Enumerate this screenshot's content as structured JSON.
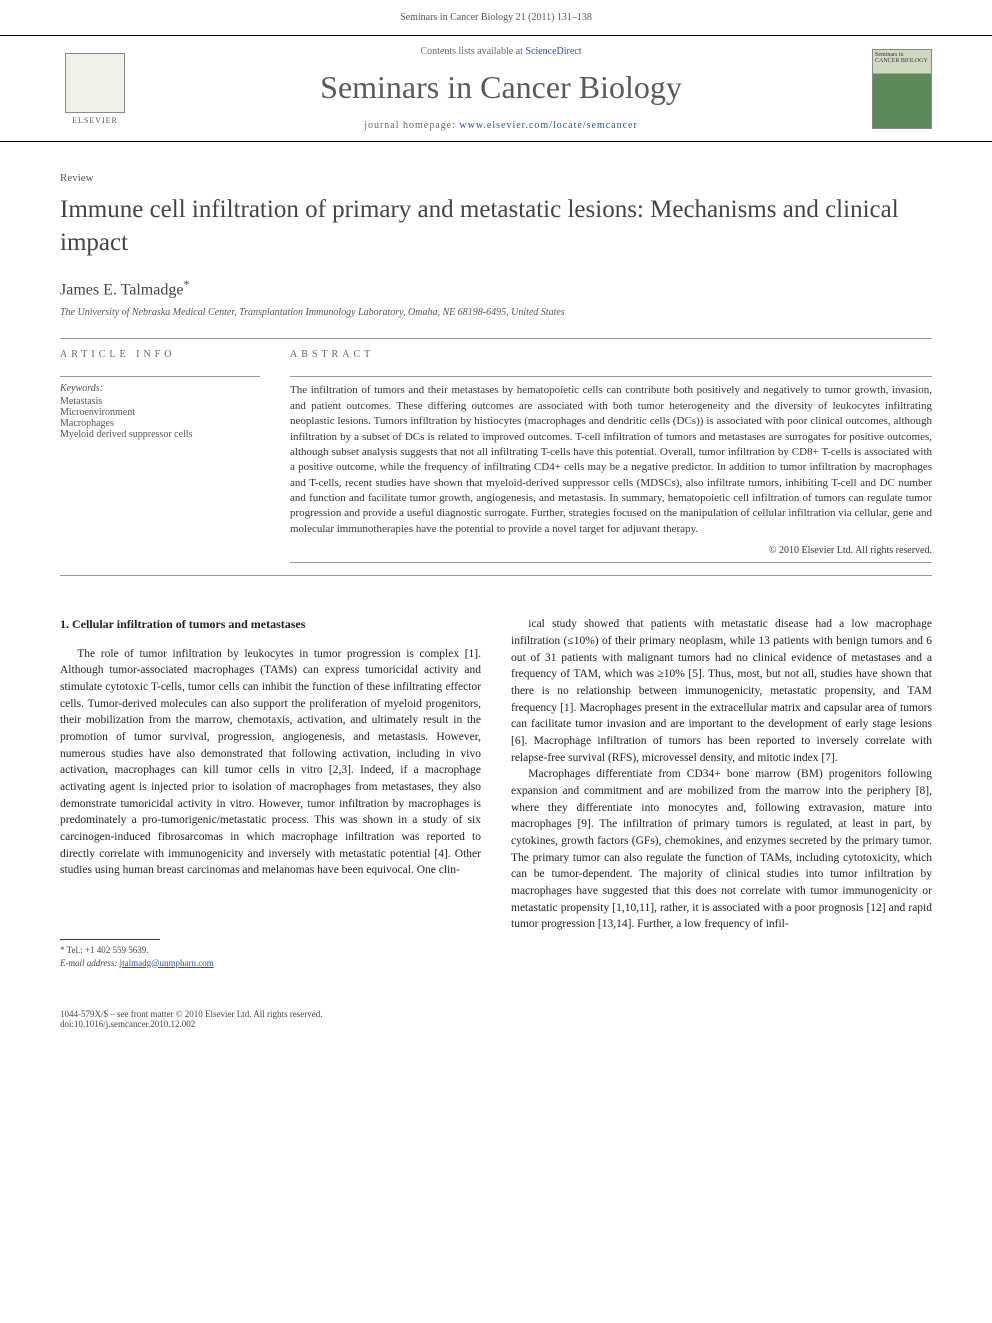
{
  "header": {
    "citation": "Seminars in Cancer Biology 21 (2011) 131–138"
  },
  "masthead": {
    "elsevier": "ELSEVIER",
    "contents_prefix": "Contents lists available at ",
    "contents_link": "ScienceDirect",
    "journal": "Seminars in Cancer Biology",
    "homepage_prefix": "journal homepage: ",
    "homepage_url": "www.elsevier.com/locate/semcancer",
    "cover_text": "Seminars in CANCER BIOLOGY"
  },
  "article": {
    "type": "Review",
    "title": "Immune cell infiltration of primary and metastatic lesions: Mechanisms and clinical impact",
    "author": "James E. Talmadge",
    "affiliation": "The University of Nebraska Medical Center, Transplantation Immunology Laboratory, Omaha, NE 68198-6495, United States"
  },
  "info": {
    "heading": "ARTICLE INFO",
    "keywords_label": "Keywords:",
    "keywords": [
      "Metastasis",
      "Microenvironment",
      "Macrophages",
      "Myeloid derived suppressor cells"
    ]
  },
  "abstract": {
    "heading": "ABSTRACT",
    "text": "The infiltration of tumors and their metastases by hematopoietic cells can contribute both positively and negatively to tumor growth, invasion, and patient outcomes. These differing outcomes are associated with both tumor heterogeneity and the diversity of leukocytes infiltrating neoplastic lesions. Tumors infiltration by histiocytes (macrophages and dendritic cells (DCs)) is associated with poor clinical outcomes, although infiltration by a subset of DCs is related to improved outcomes. T-cell infiltration of tumors and metastases are surrogates for positive outcomes, although subset analysis suggests that not all infiltrating T-cells have this potential. Overall, tumor infiltration by CD8+ T-cells is associated with a positive outcome, while the frequency of infiltrating CD4+ cells may be a negative predictor. In addition to tumor infiltration by macrophages and T-cells, recent studies have shown that myeloid-derived suppressor cells (MDSCs), also infiltrate tumors, inhibiting T-cell and DC number and function and facilitate tumor growth, angiogenesis, and metastasis. In summary, hematopoietic cell infiltration of tumors can regulate tumor progression and provide a useful diagnostic surrogate. Further, strategies focused on the manipulation of cellular infiltration via cellular, gene and molecular immunotherapies have the potential to provide a novel target for adjuvant therapy.",
    "copyright": "© 2010 Elsevier Ltd. All rights reserved."
  },
  "body": {
    "section_heading": "1. Cellular infiltration of tumors and metastases",
    "col1_text": "The role of tumor infiltration by leukocytes in tumor progression is complex [1]. Although tumor-associated macrophages (TAMs) can express tumoricidal activity and stimulate cytotoxic T-cells, tumor cells can inhibit the function of these infiltrating effector cells. Tumor-derived molecules can also support the proliferation of myeloid progenitors, their mobilization from the marrow, chemotaxis, activation, and ultimately result in the promotion of tumor survival, progression, angiogenesis, and metastasis. However, numerous studies have also demonstrated that following activation, including in vivo activation, macrophages can kill tumor cells in vitro [2,3]. Indeed, if a macrophage activating agent is injected prior to isolation of macrophages from metastases, they also demonstrate tumoricidal activity in vitro. However, tumor infiltration by macrophages is predominately a pro-tumorigenic/metastatic process. This was shown in a study of six carcinogen-induced fibrosarcomas in which macrophage infiltration was reported to directly correlate with immunogenicity and inversely with metastatic potential [4]. Other studies using human breast carcinomas and melanomas have been equivocal. One clin-",
    "col2_text": "ical study showed that patients with metastatic disease had a low macrophage infiltration (≤10%) of their primary neoplasm, while 13 patients with benign tumors and 6 out of 31 patients with malignant tumors had no clinical evidence of metastases and a frequency of TAM, which was ≥10% [5]. Thus, most, but not all, studies have shown that there is no relationship between immunogenicity, metastatic propensity, and TAM frequency [1]. Macrophages present in the extracellular matrix and capsular area of tumors can facilitate tumor invasion and are important to the development of early stage lesions [6]. Macrophage infiltration of tumors has been reported to inversely correlate with relapse-free survival (RFS), microvessel density, and mitotic index [7].",
    "col2_para2": "Macrophages differentiate from CD34+ bone marrow (BM) progenitors following expansion and commitment and are mobilized from the marrow into the periphery [8], where they differentiate into monocytes and, following extravasion, mature into macrophages [9]. The infiltration of primary tumors is regulated, at least in part, by cytokines, growth factors (GFs), chemokines, and enzymes secreted by the primary tumor. The primary tumor can also regulate the function of TAMs, including cytotoxicity, which can be tumor-dependent. The majority of clinical studies into tumor infiltration by macrophages have suggested that this does not correlate with tumor immunogenicity or metastatic propensity [1,10,11], rather, it is associated with a poor prognosis [12] and rapid tumor progression [13,14]. Further, a low frequency of infil-"
  },
  "footnote": {
    "corr": "* Tel.: +1 402 559 5639.",
    "email_label": "E-mail address: ",
    "email": "jtalmadg@unmpharn.com"
  },
  "footer": {
    "line1": "1044-579X/$ – see front matter © 2010 Elsevier Ltd. All rights reserved.",
    "line2": "doi:10.1016/j.semcancer.2010.12.002"
  }
}
